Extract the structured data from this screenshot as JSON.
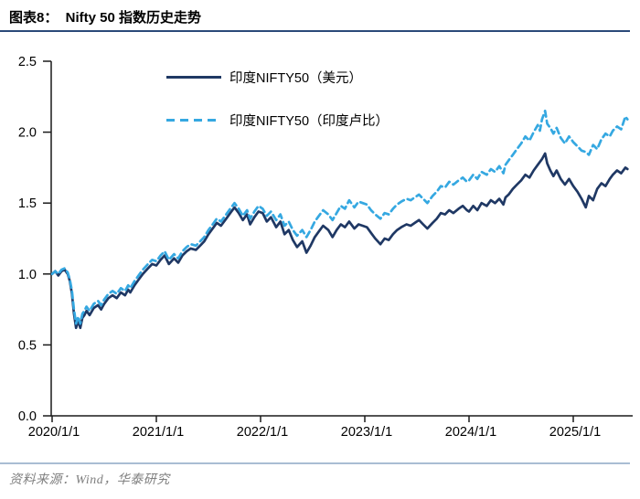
{
  "header": {
    "title": "图表8：  Nifty 50 指数历史走势"
  },
  "footer": {
    "source": "资料来源：Wind，华泰研究"
  },
  "colors": {
    "accent_navy": "#1f3864",
    "accent_light_blue": "#35a8e1",
    "rule_dark": "#2b4a79",
    "rule_light": "#a9bdd3",
    "axis": "#1a1a1a",
    "footer_text": "#7f7f7f"
  },
  "chart_data": {
    "type": "line",
    "title": "Nifty 50 指数历史走势",
    "xlabel": "",
    "ylabel": "",
    "grid": false,
    "legend_position": "top-center",
    "x_axis": {
      "range": [
        0,
        5.57
      ],
      "ticks": [
        {
          "t": 0,
          "label": "2020/1/1"
        },
        {
          "t": 1,
          "label": "2021/1/1"
        },
        {
          "t": 2,
          "label": "2022/1/1"
        },
        {
          "t": 3,
          "label": "2023/1/1"
        },
        {
          "t": 4,
          "label": "2024/1/1"
        },
        {
          "t": 5,
          "label": "2025/1/1"
        }
      ]
    },
    "y_axis": {
      "range": [
        0,
        2.5
      ],
      "ticks": [
        {
          "v": 0.0,
          "label": "0.0"
        },
        {
          "v": 0.5,
          "label": "0.5"
        },
        {
          "v": 1.0,
          "label": "1.0"
        },
        {
          "v": 1.5,
          "label": "1.5"
        },
        {
          "v": 2.0,
          "label": "2.0"
        },
        {
          "v": 2.5,
          "label": "2.5"
        }
      ]
    },
    "series": [
      {
        "name": "印度NIFTY50（美元）",
        "color": "#1f3864",
        "dash": "",
        "points": [
          [
            0.0,
            1.0
          ],
          [
            0.03,
            1.02
          ],
          [
            0.06,
            0.99
          ],
          [
            0.09,
            1.02
          ],
          [
            0.12,
            1.03
          ],
          [
            0.15,
            1.0
          ],
          [
            0.17,
            0.95
          ],
          [
            0.19,
            0.86
          ],
          [
            0.21,
            0.72
          ],
          [
            0.23,
            0.62
          ],
          [
            0.25,
            0.67
          ],
          [
            0.27,
            0.62
          ],
          [
            0.29,
            0.69
          ],
          [
            0.31,
            0.71
          ],
          [
            0.33,
            0.74
          ],
          [
            0.36,
            0.71
          ],
          [
            0.4,
            0.76
          ],
          [
            0.44,
            0.78
          ],
          [
            0.47,
            0.75
          ],
          [
            0.5,
            0.79
          ],
          [
            0.54,
            0.83
          ],
          [
            0.58,
            0.85
          ],
          [
            0.62,
            0.83
          ],
          [
            0.66,
            0.87
          ],
          [
            0.7,
            0.85
          ],
          [
            0.73,
            0.89
          ],
          [
            0.75,
            0.87
          ],
          [
            0.79,
            0.92
          ],
          [
            0.83,
            0.96
          ],
          [
            0.87,
            1.0
          ],
          [
            0.92,
            1.04
          ],
          [
            0.96,
            1.07
          ],
          [
            1.0,
            1.06
          ],
          [
            1.04,
            1.1
          ],
          [
            1.08,
            1.13
          ],
          [
            1.12,
            1.07
          ],
          [
            1.17,
            1.11
          ],
          [
            1.21,
            1.08
          ],
          [
            1.25,
            1.13
          ],
          [
            1.29,
            1.16
          ],
          [
            1.33,
            1.18
          ],
          [
            1.38,
            1.17
          ],
          [
            1.42,
            1.2
          ],
          [
            1.46,
            1.23
          ],
          [
            1.5,
            1.28
          ],
          [
            1.54,
            1.32
          ],
          [
            1.58,
            1.36
          ],
          [
            1.62,
            1.34
          ],
          [
            1.67,
            1.39
          ],
          [
            1.71,
            1.43
          ],
          [
            1.75,
            1.47
          ],
          [
            1.79,
            1.43
          ],
          [
            1.83,
            1.38
          ],
          [
            1.87,
            1.42
          ],
          [
            1.9,
            1.35
          ],
          [
            1.94,
            1.4
          ],
          [
            1.98,
            1.44
          ],
          [
            2.02,
            1.43
          ],
          [
            2.06,
            1.37
          ],
          [
            2.1,
            1.4
          ],
          [
            2.15,
            1.33
          ],
          [
            2.19,
            1.37
          ],
          [
            2.23,
            1.28
          ],
          [
            2.27,
            1.31
          ],
          [
            2.31,
            1.24
          ],
          [
            2.35,
            1.19
          ],
          [
            2.4,
            1.23
          ],
          [
            2.44,
            1.15
          ],
          [
            2.48,
            1.2
          ],
          [
            2.52,
            1.26
          ],
          [
            2.56,
            1.3
          ],
          [
            2.6,
            1.34
          ],
          [
            2.65,
            1.31
          ],
          [
            2.69,
            1.26
          ],
          [
            2.73,
            1.31
          ],
          [
            2.77,
            1.35
          ],
          [
            2.81,
            1.33
          ],
          [
            2.85,
            1.37
          ],
          [
            2.9,
            1.32
          ],
          [
            2.94,
            1.35
          ],
          [
            2.98,
            1.34
          ],
          [
            3.02,
            1.33
          ],
          [
            3.06,
            1.29
          ],
          [
            3.1,
            1.25
          ],
          [
            3.15,
            1.21
          ],
          [
            3.19,
            1.25
          ],
          [
            3.23,
            1.24
          ],
          [
            3.27,
            1.28
          ],
          [
            3.31,
            1.31
          ],
          [
            3.35,
            1.33
          ],
          [
            3.4,
            1.35
          ],
          [
            3.44,
            1.34
          ],
          [
            3.48,
            1.36
          ],
          [
            3.52,
            1.38
          ],
          [
            3.56,
            1.35
          ],
          [
            3.6,
            1.32
          ],
          [
            3.65,
            1.36
          ],
          [
            3.69,
            1.39
          ],
          [
            3.73,
            1.43
          ],
          [
            3.77,
            1.42
          ],
          [
            3.81,
            1.45
          ],
          [
            3.85,
            1.43
          ],
          [
            3.9,
            1.46
          ],
          [
            3.94,
            1.48
          ],
          [
            3.98,
            1.45
          ],
          [
            4.0,
            1.44
          ],
          [
            4.04,
            1.48
          ],
          [
            4.08,
            1.45
          ],
          [
            4.12,
            1.5
          ],
          [
            4.17,
            1.48
          ],
          [
            4.21,
            1.52
          ],
          [
            4.25,
            1.5
          ],
          [
            4.29,
            1.53
          ],
          [
            4.33,
            1.49
          ],
          [
            4.35,
            1.54
          ],
          [
            4.38,
            1.56
          ],
          [
            4.42,
            1.6
          ],
          [
            4.46,
            1.63
          ],
          [
            4.5,
            1.66
          ],
          [
            4.54,
            1.7
          ],
          [
            4.58,
            1.68
          ],
          [
            4.62,
            1.73
          ],
          [
            4.66,
            1.77
          ],
          [
            4.7,
            1.81
          ],
          [
            4.73,
            1.85
          ],
          [
            4.75,
            1.78
          ],
          [
            4.78,
            1.73
          ],
          [
            4.81,
            1.69
          ],
          [
            4.84,
            1.73
          ],
          [
            4.88,
            1.67
          ],
          [
            4.92,
            1.63
          ],
          [
            4.96,
            1.67
          ],
          [
            5.0,
            1.62
          ],
          [
            5.04,
            1.58
          ],
          [
            5.08,
            1.53
          ],
          [
            5.12,
            1.47
          ],
          [
            5.15,
            1.55
          ],
          [
            5.19,
            1.52
          ],
          [
            5.23,
            1.6
          ],
          [
            5.27,
            1.64
          ],
          [
            5.31,
            1.62
          ],
          [
            5.35,
            1.67
          ],
          [
            5.38,
            1.7
          ],
          [
            5.42,
            1.73
          ],
          [
            5.46,
            1.71
          ],
          [
            5.5,
            1.75
          ],
          [
            5.52,
            1.74
          ]
        ]
      },
      {
        "name": "印度NIFTY50（印度卢比）",
        "color": "#35a8e1",
        "dash": "7 4.5",
        "points": [
          [
            0.0,
            1.0
          ],
          [
            0.03,
            1.02
          ],
          [
            0.06,
            1.0
          ],
          [
            0.09,
            1.03
          ],
          [
            0.12,
            1.04
          ],
          [
            0.15,
            1.01
          ],
          [
            0.17,
            0.96
          ],
          [
            0.19,
            0.88
          ],
          [
            0.21,
            0.75
          ],
          [
            0.23,
            0.65
          ],
          [
            0.25,
            0.7
          ],
          [
            0.27,
            0.65
          ],
          [
            0.29,
            0.72
          ],
          [
            0.31,
            0.74
          ],
          [
            0.33,
            0.77
          ],
          [
            0.36,
            0.74
          ],
          [
            0.4,
            0.79
          ],
          [
            0.44,
            0.81
          ],
          [
            0.47,
            0.78
          ],
          [
            0.5,
            0.82
          ],
          [
            0.54,
            0.86
          ],
          [
            0.58,
            0.88
          ],
          [
            0.62,
            0.86
          ],
          [
            0.66,
            0.9
          ],
          [
            0.7,
            0.88
          ],
          [
            0.73,
            0.92
          ],
          [
            0.75,
            0.9
          ],
          [
            0.79,
            0.95
          ],
          [
            0.83,
            0.99
          ],
          [
            0.87,
            1.03
          ],
          [
            0.92,
            1.07
          ],
          [
            0.96,
            1.1
          ],
          [
            1.0,
            1.09
          ],
          [
            1.04,
            1.13
          ],
          [
            1.08,
            1.16
          ],
          [
            1.12,
            1.1
          ],
          [
            1.17,
            1.14
          ],
          [
            1.21,
            1.11
          ],
          [
            1.25,
            1.16
          ],
          [
            1.29,
            1.19
          ],
          [
            1.33,
            1.21
          ],
          [
            1.38,
            1.2
          ],
          [
            1.42,
            1.23
          ],
          [
            1.46,
            1.26
          ],
          [
            1.5,
            1.31
          ],
          [
            1.54,
            1.35
          ],
          [
            1.58,
            1.39
          ],
          [
            1.62,
            1.37
          ],
          [
            1.67,
            1.42
          ],
          [
            1.71,
            1.46
          ],
          [
            1.75,
            1.5
          ],
          [
            1.79,
            1.46
          ],
          [
            1.83,
            1.41
          ],
          [
            1.87,
            1.45
          ],
          [
            1.9,
            1.39
          ],
          [
            1.94,
            1.44
          ],
          [
            1.98,
            1.48
          ],
          [
            2.02,
            1.46
          ],
          [
            2.06,
            1.41
          ],
          [
            2.1,
            1.44
          ],
          [
            2.15,
            1.38
          ],
          [
            2.19,
            1.42
          ],
          [
            2.23,
            1.34
          ],
          [
            2.27,
            1.37
          ],
          [
            2.31,
            1.31
          ],
          [
            2.35,
            1.27
          ],
          [
            2.4,
            1.31
          ],
          [
            2.44,
            1.26
          ],
          [
            2.48,
            1.31
          ],
          [
            2.52,
            1.37
          ],
          [
            2.56,
            1.41
          ],
          [
            2.6,
            1.45
          ],
          [
            2.65,
            1.42
          ],
          [
            2.69,
            1.38
          ],
          [
            2.73,
            1.43
          ],
          [
            2.77,
            1.48
          ],
          [
            2.81,
            1.46
          ],
          [
            2.85,
            1.52
          ],
          [
            2.9,
            1.47
          ],
          [
            2.94,
            1.51
          ],
          [
            2.98,
            1.5
          ],
          [
            3.02,
            1.49
          ],
          [
            3.06,
            1.45
          ],
          [
            3.1,
            1.42
          ],
          [
            3.15,
            1.39
          ],
          [
            3.19,
            1.43
          ],
          [
            3.23,
            1.42
          ],
          [
            3.27,
            1.46
          ],
          [
            3.31,
            1.49
          ],
          [
            3.35,
            1.51
          ],
          [
            3.4,
            1.53
          ],
          [
            3.44,
            1.52
          ],
          [
            3.48,
            1.54
          ],
          [
            3.52,
            1.56
          ],
          [
            3.56,
            1.53
          ],
          [
            3.6,
            1.5
          ],
          [
            3.65,
            1.55
          ],
          [
            3.69,
            1.58
          ],
          [
            3.73,
            1.62
          ],
          [
            3.77,
            1.61
          ],
          [
            3.81,
            1.65
          ],
          [
            3.85,
            1.63
          ],
          [
            3.9,
            1.66
          ],
          [
            3.94,
            1.68
          ],
          [
            3.98,
            1.65
          ],
          [
            4.0,
            1.66
          ],
          [
            4.04,
            1.7
          ],
          [
            4.08,
            1.67
          ],
          [
            4.12,
            1.72
          ],
          [
            4.17,
            1.7
          ],
          [
            4.21,
            1.74
          ],
          [
            4.25,
            1.72
          ],
          [
            4.29,
            1.76
          ],
          [
            4.33,
            1.71
          ],
          [
            4.35,
            1.77
          ],
          [
            4.38,
            1.8
          ],
          [
            4.42,
            1.84
          ],
          [
            4.46,
            1.88
          ],
          [
            4.5,
            1.92
          ],
          [
            4.54,
            1.97
          ],
          [
            4.58,
            1.94
          ],
          [
            4.62,
            2.0
          ],
          [
            4.66,
            2.05
          ],
          [
            4.68,
            2.01
          ],
          [
            4.7,
            2.09
          ],
          [
            4.73,
            2.15
          ],
          [
            4.75,
            2.06
          ],
          [
            4.78,
            2.03
          ],
          [
            4.81,
            1.99
          ],
          [
            4.84,
            2.03
          ],
          [
            4.88,
            1.96
          ],
          [
            4.92,
            1.92
          ],
          [
            4.96,
            1.97
          ],
          [
            5.0,
            1.93
          ],
          [
            5.04,
            1.9
          ],
          [
            5.08,
            1.87
          ],
          [
            5.12,
            1.86
          ],
          [
            5.15,
            1.84
          ],
          [
            5.19,
            1.91
          ],
          [
            5.23,
            1.88
          ],
          [
            5.27,
            1.95
          ],
          [
            5.31,
            1.99
          ],
          [
            5.35,
            1.97
          ],
          [
            5.38,
            2.01
          ],
          [
            5.42,
            2.04
          ],
          [
            5.46,
            2.02
          ],
          [
            5.5,
            2.11
          ],
          [
            5.52,
            2.09
          ]
        ]
      }
    ]
  }
}
